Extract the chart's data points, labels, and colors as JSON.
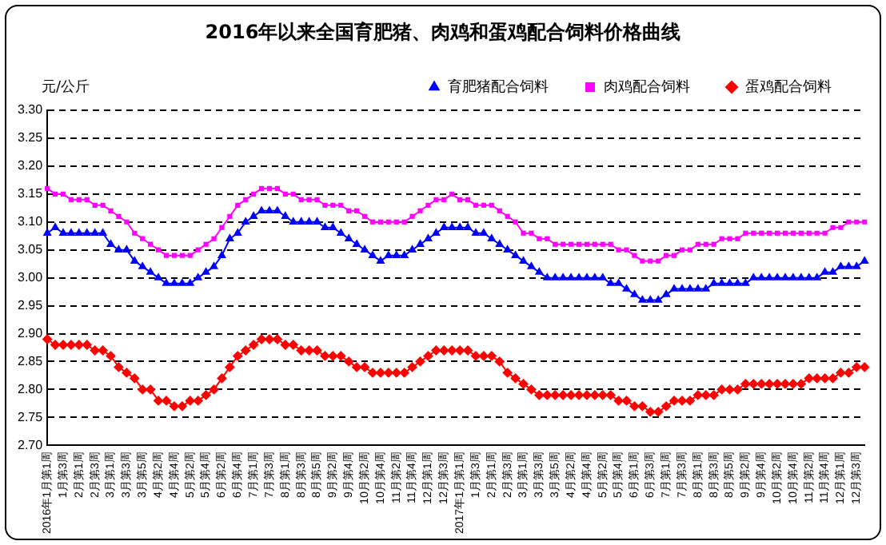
{
  "chart_data": {
    "type": "line",
    "title": "2016年以来全国育肥猪、肉鸡和蛋鸡配合饲料价格曲线",
    "ylabel": "元/公斤",
    "categories": [
      "2016年1月第1周",
      null,
      "1月第3周",
      null,
      "2月第1周",
      null,
      "2月第3周",
      null,
      "3月第1周",
      null,
      "3月第3周",
      null,
      "3月第5周",
      null,
      "4月第2周",
      null,
      "4月第4周",
      null,
      "5月第2周",
      null,
      "5月第4周",
      null,
      "6月第2周",
      null,
      "6月第4周",
      null,
      "7月第1周",
      null,
      "7月第3周",
      null,
      "8月第1周",
      null,
      "8月第3周",
      null,
      "8月第5周",
      null,
      "9月第2周",
      null,
      "9月第4周",
      null,
      "10月第2周",
      null,
      "10月第4周",
      null,
      "11月第2周",
      null,
      "11月第4周",
      null,
      "12月第1周",
      null,
      "12月第3周",
      null,
      "2017年1月第1周",
      null,
      "1月第3周",
      null,
      "2月第1周",
      null,
      "2月第3周",
      null,
      "3月第1周",
      null,
      "3月第3周",
      null,
      "3月第5周",
      null,
      "4月第2周",
      null,
      "4月第4周",
      null,
      "5月第2周",
      null,
      "5月第4周",
      null,
      "6月第1周",
      null,
      "6月第3周",
      null,
      "7月第1周",
      null,
      "7月第3周",
      null,
      "8月第1周",
      null,
      "8月第3周",
      null,
      "8月第5周",
      null,
      "9月第2周",
      null,
      "9月第4周",
      null,
      "10月第2周",
      null,
      "10月第4周",
      null,
      "11月第2周",
      null,
      "11月第4周",
      null,
      "12月第1周",
      null,
      "12月第3周",
      null
    ],
    "series": [
      {
        "name": "育肥猪配合饲料",
        "color": "#0000ff",
        "marker": "triangle",
        "values": [
          3.08,
          3.09,
          3.08,
          3.08,
          3.08,
          3.08,
          3.08,
          3.08,
          3.06,
          3.05,
          3.05,
          3.03,
          3.02,
          3.01,
          3.0,
          2.99,
          2.99,
          2.99,
          2.99,
          3.0,
          3.01,
          3.02,
          3.04,
          3.07,
          3.08,
          3.1,
          3.11,
          3.12,
          3.12,
          3.12,
          3.11,
          3.1,
          3.1,
          3.1,
          3.1,
          3.09,
          3.09,
          3.08,
          3.07,
          3.06,
          3.05,
          3.04,
          3.03,
          3.04,
          3.04,
          3.04,
          3.05,
          3.06,
          3.07,
          3.08,
          3.09,
          3.09,
          3.09,
          3.09,
          3.08,
          3.08,
          3.07,
          3.06,
          3.05,
          3.04,
          3.03,
          3.02,
          3.01,
          3.0,
          3.0,
          3.0,
          3.0,
          3.0,
          3.0,
          3.0,
          3.0,
          2.99,
          2.99,
          2.98,
          2.97,
          2.96,
          2.96,
          2.96,
          2.97,
          2.98,
          2.98,
          2.98,
          2.98,
          2.98,
          2.99,
          2.99,
          2.99,
          2.99,
          2.99,
          3.0,
          3.0,
          3.0,
          3.0,
          3.0,
          3.0,
          3.0,
          3.0,
          3.0,
          3.01,
          3.01,
          3.02,
          3.02,
          3.02,
          3.03
        ]
      },
      {
        "name": "肉鸡配合饲料",
        "color": "#ff00ff",
        "marker": "square",
        "values": [
          3.16,
          3.15,
          3.15,
          3.14,
          3.14,
          3.14,
          3.13,
          3.13,
          3.12,
          3.11,
          3.1,
          3.08,
          3.07,
          3.06,
          3.05,
          3.04,
          3.04,
          3.04,
          3.04,
          3.05,
          3.06,
          3.07,
          3.09,
          3.11,
          3.13,
          3.14,
          3.15,
          3.16,
          3.16,
          3.16,
          3.15,
          3.15,
          3.14,
          3.14,
          3.14,
          3.13,
          3.13,
          3.13,
          3.12,
          3.12,
          3.11,
          3.1,
          3.1,
          3.1,
          3.1,
          3.1,
          3.11,
          3.12,
          3.13,
          3.14,
          3.14,
          3.15,
          3.14,
          3.14,
          3.13,
          3.13,
          3.13,
          3.12,
          3.11,
          3.1,
          3.08,
          3.08,
          3.07,
          3.07,
          3.06,
          3.06,
          3.06,
          3.06,
          3.06,
          3.06,
          3.06,
          3.06,
          3.05,
          3.05,
          3.04,
          3.03,
          3.03,
          3.03,
          3.04,
          3.04,
          3.05,
          3.05,
          3.06,
          3.06,
          3.06,
          3.07,
          3.07,
          3.07,
          3.08,
          3.08,
          3.08,
          3.08,
          3.08,
          3.08,
          3.08,
          3.08,
          3.08,
          3.08,
          3.08,
          3.09,
          3.09,
          3.1,
          3.1,
          3.1
        ]
      },
      {
        "name": "蛋鸡配合饲料",
        "color": "#ff0000",
        "marker": "diamond",
        "values": [
          2.89,
          2.88,
          2.88,
          2.88,
          2.88,
          2.88,
          2.87,
          2.87,
          2.86,
          2.84,
          2.83,
          2.82,
          2.8,
          2.8,
          2.78,
          2.78,
          2.77,
          2.77,
          2.78,
          2.78,
          2.79,
          2.8,
          2.82,
          2.84,
          2.86,
          2.87,
          2.88,
          2.89,
          2.89,
          2.89,
          2.88,
          2.88,
          2.87,
          2.87,
          2.87,
          2.86,
          2.86,
          2.86,
          2.85,
          2.84,
          2.84,
          2.83,
          2.83,
          2.83,
          2.83,
          2.83,
          2.84,
          2.85,
          2.86,
          2.87,
          2.87,
          2.87,
          2.87,
          2.87,
          2.86,
          2.86,
          2.86,
          2.85,
          2.83,
          2.82,
          2.81,
          2.8,
          2.79,
          2.79,
          2.79,
          2.79,
          2.79,
          2.79,
          2.79,
          2.79,
          2.79,
          2.79,
          2.78,
          2.78,
          2.77,
          2.77,
          2.76,
          2.76,
          2.77,
          2.78,
          2.78,
          2.78,
          2.79,
          2.79,
          2.79,
          2.8,
          2.8,
          2.8,
          2.81,
          2.81,
          2.81,
          2.81,
          2.81,
          2.81,
          2.81,
          2.81,
          2.82,
          2.82,
          2.82,
          2.82,
          2.83,
          2.83,
          2.84,
          2.84
        ]
      }
    ],
    "ylim": [
      2.7,
      3.3
    ],
    "yticks": [
      {
        "value": 2.7,
        "label": "2.70"
      },
      2.75,
      {
        "value": 2.8,
        "label": "2.80"
      },
      2.85,
      {
        "value": 2.9,
        "label": "2.90"
      },
      2.95,
      {
        "value": 3.0,
        "label": "3.00"
      },
      3.05,
      {
        "value": 3.1,
        "label": "3.10"
      },
      3.15,
      {
        "value": 3.2,
        "label": "3.20"
      },
      3.25,
      {
        "value": 3.3,
        "label": "3.30"
      }
    ],
    "grid": "y",
    "legend": "top right",
    "line_style": "solid"
  }
}
